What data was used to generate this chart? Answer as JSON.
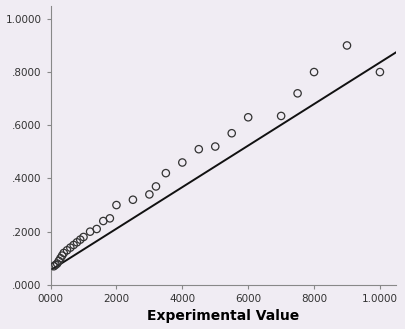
{
  "scatter_x": [
    100,
    150,
    200,
    250,
    300,
    350,
    400,
    500,
    600,
    700,
    800,
    900,
    1000,
    1200,
    1400,
    1600,
    1800,
    2000,
    2500,
    3000,
    3200,
    3500,
    4000,
    4500,
    5000,
    5500,
    6000,
    7000,
    7500,
    8000,
    9000,
    10000
  ],
  "scatter_y": [
    0.07,
    0.075,
    0.08,
    0.09,
    0.1,
    0.11,
    0.12,
    0.13,
    0.14,
    0.15,
    0.16,
    0.17,
    0.18,
    0.2,
    0.21,
    0.24,
    0.25,
    0.3,
    0.32,
    0.34,
    0.37,
    0.42,
    0.46,
    0.51,
    0.52,
    0.57,
    0.63,
    0.635,
    0.72,
    0.8,
    0.9,
    0.8
  ],
  "line_x": [
    0,
    10500
  ],
  "line_y": [
    0.055,
    0.875
  ],
  "xlabel": "Experimental Value",
  "bg_color": "#f0ecf3",
  "line_color": "#111111",
  "marker_face": "none",
  "marker_edge": "#333333",
  "xlim": [
    0,
    10500
  ],
  "ylim": [
    0.0,
    1.05
  ],
  "xticks": [
    0,
    2000,
    4000,
    6000,
    8000,
    10000
  ],
  "xticklabels": [
    "0000",
    "2000",
    "4000",
    "6000",
    "8000",
    "1.0000"
  ],
  "yticks": [
    0.0,
    0.2,
    0.4,
    0.6,
    0.8,
    1.0
  ],
  "yticklabels": [
    ".0000",
    ".2000",
    ".4000",
    ".6000",
    ".8000",
    "1.0000"
  ],
  "marker_size": 28,
  "line_width": 1.4,
  "tick_fontsize": 7.5,
  "xlabel_fontsize": 10
}
